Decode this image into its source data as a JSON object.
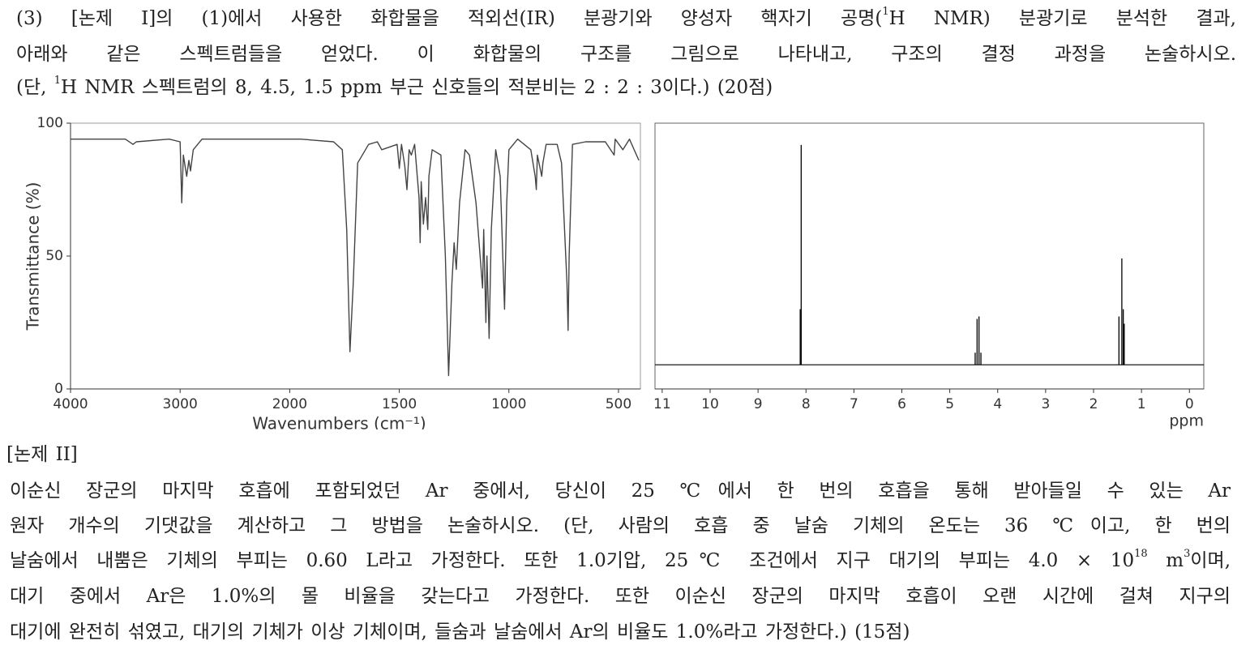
{
  "problem3": {
    "line1": [
      "(3) [논제 I]의 (1)에서 사용한 화합물을 적외선(IR) 분광기와 양성자 핵자기 공명(",
      "1",
      "H NMR) 분광기로 분석한 결과,"
    ],
    "line2": "아래와 같은 스펙트럼들을 얻었다. 이 화합물의 구조를 그림으로 나타내고, 구조의 결정 과정을 논술하시오.",
    "line3": [
      "(단, ",
      "1",
      "H NMR 스펙트럼의 8, 4.5, 1.5 ppm 부근 신호들의 적분비는 2 : 2 : 3이다.) (20점)"
    ]
  },
  "chart_data": [
    {
      "type": "line",
      "ylabel": "Transmittance (%)",
      "xlabel": "Wavenumbers (cm⁻¹)",
      "color": "#444444",
      "xlim": [
        4000,
        400
      ],
      "xticks": [
        4000,
        3000,
        2000,
        1500,
        1000,
        500
      ],
      "ylim": [
        0,
        100
      ],
      "yticks": [
        0,
        50,
        100
      ],
      "x": [
        4000,
        3500,
        3430,
        3400,
        3100,
        3000,
        2985,
        2970,
        2940,
        2920,
        2905,
        2880,
        2800,
        2000,
        1950,
        1800,
        1760,
        1740,
        1725,
        1710,
        1690,
        1640,
        1600,
        1580,
        1510,
        1500,
        1490,
        1475,
        1465,
        1455,
        1445,
        1430,
        1410,
        1405,
        1400,
        1390,
        1380,
        1370,
        1365,
        1350,
        1310,
        1290,
        1275,
        1260,
        1250,
        1240,
        1225,
        1200,
        1180,
        1150,
        1120,
        1115,
        1105,
        1100,
        1090,
        1080,
        1060,
        1040,
        1020,
        1010,
        1000,
        960,
        900,
        880,
        875,
        870,
        850,
        845,
        830,
        780,
        760,
        735,
        730,
        725,
        710,
        650,
        560,
        520,
        515,
        480,
        450,
        407
      ],
      "values": [
        94,
        94,
        92,
        93,
        94,
        93,
        70,
        88,
        80,
        86,
        82,
        90,
        94,
        94,
        94,
        93,
        90,
        60,
        14,
        40,
        85,
        92,
        93,
        90,
        92,
        83,
        92,
        84,
        75,
        90,
        88,
        92,
        72,
        55,
        78,
        62,
        72,
        60,
        80,
        90,
        88,
        50,
        5,
        40,
        55,
        45,
        70,
        90,
        88,
        70,
        38,
        60,
        25,
        50,
        19,
        60,
        90,
        80,
        30,
        70,
        90,
        94,
        90,
        80,
        75,
        88,
        80,
        85,
        92,
        92,
        85,
        40,
        22,
        50,
        92,
        93,
        93,
        88,
        94,
        90,
        94,
        86
      ]
    },
    {
      "type": "stem",
      "xlabel": "ppm",
      "color": "#000000",
      "xlim": [
        11.15,
        -0.3
      ],
      "xticks": [
        11,
        10,
        9,
        8,
        7,
        6,
        5,
        4,
        3,
        2,
        1,
        0
      ],
      "ylim": [
        -10,
        100
      ],
      "x": [
        8.12,
        8.1,
        4.47,
        4.43,
        4.39,
        4.35,
        1.47,
        1.41,
        1.38,
        1.36
      ],
      "values": [
        23,
        91,
        5,
        19,
        20,
        5,
        20,
        44,
        23,
        17
      ]
    }
  ],
  "problem2": {
    "title": "[논제 II]",
    "line1": " 이순신 장군의 마지막 호흡에 포함되었던 Ar 중에서, 당신이 25 ℃에서 한 번의 호흡을 통해 받아들일 수 있는 Ar",
    "line2": "원자 개수의 기댓값을 계산하고 그 방법을 논술하시오. (단, 사람의 호흡 중 날숨 기체의 온도는 36 ℃이고, 한 번의",
    "line3": [
      "날숨에서 내뿜은 기체의 부피는 0.60 L라고 가정한다. 또한 1.0기압, 25℃ 조건에서 지구 대기의 부피는 4.0 × 10",
      "18",
      " m",
      "3",
      "이며,"
    ],
    "line4": "대기 중에서 Ar은 1.0%의 몰 비율을 갖는다고 가정한다. 또한 이순신 장군의 마지막 호흡이 오랜 시간에 걸쳐 지구의",
    "line5": "대기에 완전히 섞였고, 대기의 기체가 이상 기체이며, 들숨과 날숨에서 Ar의 비율도 1.0%라고 가정한다.) (15점)"
  }
}
